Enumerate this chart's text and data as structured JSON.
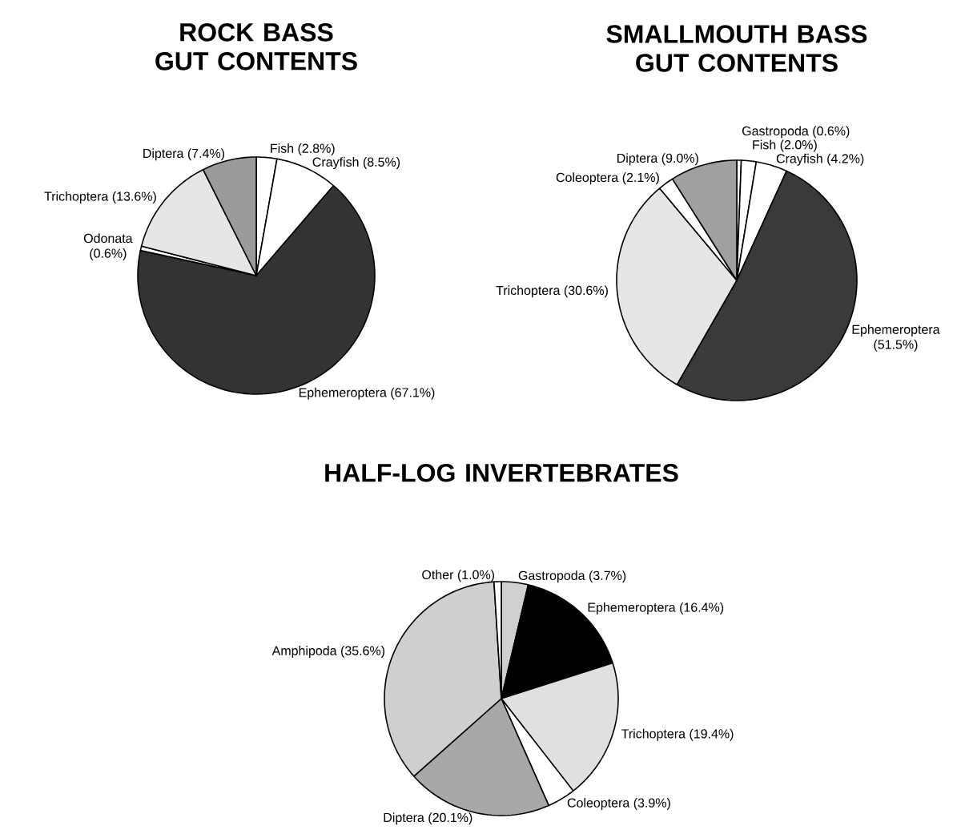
{
  "chart_data": [
    {
      "type": "pie",
      "title": "ROCK BASS GUT CONTENTS",
      "categories": [
        "Fish",
        "Crayfish",
        "Ephemeroptera",
        "Odonata",
        "Trichoptera",
        "Diptera"
      ],
      "values": [
        2.8,
        8.5,
        67.1,
        0.6,
        13.6,
        7.4
      ],
      "value_labels": [
        "(2.8%)",
        "(8.5%)",
        "(67.1%)",
        "(0.6%)",
        "(13.6%)",
        "(7.4%)"
      ],
      "colors": [
        "#ffffff",
        "#ffffff",
        "#333333",
        "#ffffff",
        "#e6e6e6",
        "#9a9a9a"
      ]
    },
    {
      "type": "pie",
      "title": "SMALLMOUTH BASS GUT CONTENTS",
      "categories": [
        "Gastropoda",
        "Fish",
        "Crayfish",
        "Ephemeroptera",
        "Trichoptera",
        "Coleoptera",
        "Diptera"
      ],
      "values": [
        0.6,
        2.0,
        4.2,
        51.5,
        30.6,
        2.1,
        9.0
      ],
      "value_labels": [
        "(0.6%)",
        "(2.0%)",
        "(4.2%)",
        "(51.5%)",
        "(30.6%)",
        "(2.1%)",
        "(9.0%)"
      ],
      "colors": [
        "#ffffff",
        "#ffffff",
        "#ffffff",
        "#3a3a3a",
        "#e6e6e6",
        "#ffffff",
        "#a0a0a0"
      ]
    },
    {
      "type": "pie",
      "title": "HALF-LOG INVERTEBRATES",
      "categories": [
        "Gastropoda",
        "Ephemeroptera",
        "Trichoptera",
        "Coleoptera",
        "Diptera",
        "Amphipoda",
        "Other"
      ],
      "values": [
        3.7,
        16.4,
        19.4,
        3.9,
        20.1,
        35.6,
        1.0
      ],
      "value_labels": [
        "(3.7%)",
        "(16.4%)",
        "(19.4%)",
        "(3.9%)",
        "(20.1%)",
        "(35.6%)",
        "(1.0%)"
      ],
      "colors": [
        "#d0d0d0",
        "#000000",
        "#e0e0e0",
        "#ffffff",
        "#a8a8a8",
        "#cfcfcf",
        "#ffffff"
      ]
    }
  ]
}
